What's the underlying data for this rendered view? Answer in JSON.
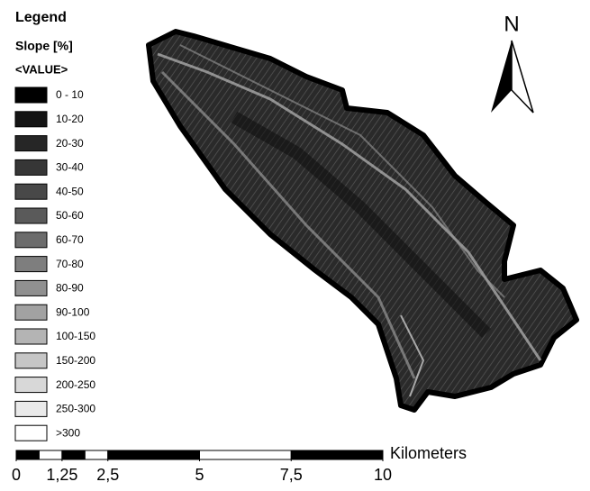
{
  "legend": {
    "title": "Legend",
    "layer": "Slope [%]",
    "field": "<VALUE>",
    "classes": [
      {
        "label": "0 - 10",
        "color": "#000000"
      },
      {
        "label": "10-20",
        "color": "#141414"
      },
      {
        "label": "20-30",
        "color": "#262626"
      },
      {
        "label": "30-40",
        "color": "#363636"
      },
      {
        "label": "40-50",
        "color": "#484848"
      },
      {
        "label": "50-60",
        "color": "#5a5a5a"
      },
      {
        "label": "60-70",
        "color": "#6c6c6c"
      },
      {
        "label": "70-80",
        "color": "#7e7e7e"
      },
      {
        "label": "80-90",
        "color": "#909090"
      },
      {
        "label": "90-100",
        "color": "#a2a2a2"
      },
      {
        "label": "100-150",
        "color": "#b4b4b4"
      },
      {
        "label": "150-200",
        "color": "#c6c6c6"
      },
      {
        "label": "200-250",
        "color": "#d8d8d8"
      },
      {
        "label": "250-300",
        "color": "#eaeaea"
      },
      {
        "label": ">300",
        "color": "#ffffff"
      }
    ]
  },
  "north_arrow": {
    "label": "N"
  },
  "scale_bar": {
    "unit": "Kilometers",
    "ticks": [
      0,
      {
        "value": 1.25,
        "label": "1,25"
      },
      {
        "value": 2.5,
        "label": "2,5"
      },
      5,
      {
        "value": 7.5,
        "label": "7,5"
      },
      10
    ]
  }
}
